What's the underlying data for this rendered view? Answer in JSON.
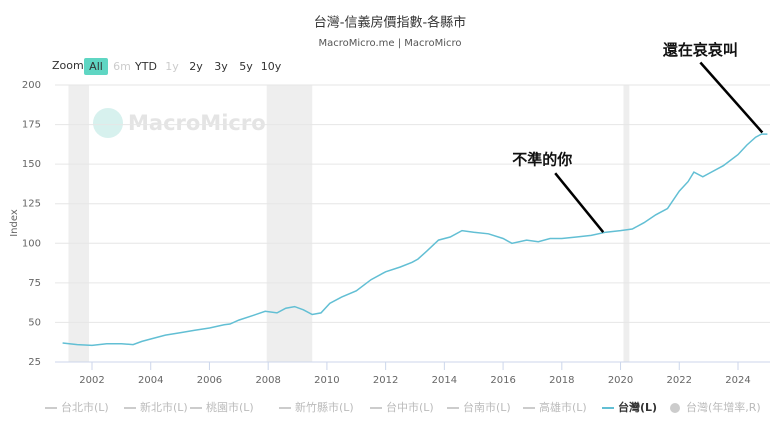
{
  "chart_data": {
    "type": "line",
    "title": "台灣-信義房價指數-各縣市",
    "subtitle": "MacroMicro.me | MacroMicro",
    "watermark": "MacroMicro",
    "y_label": "Index",
    "zoom": {
      "label": "Zoom",
      "buttons": [
        "All",
        "6m",
        "YTD",
        "1y",
        "2y",
        "3y",
        "5y",
        "10y"
      ],
      "active": 0,
      "disabled": [
        1,
        3
      ]
    },
    "x": [
      2001.0,
      2001.5,
      2002.0,
      2002.5,
      2003.0,
      2003.4,
      2003.7,
      2004.0,
      2004.5,
      2005.0,
      2005.5,
      2006.0,
      2006.5,
      2006.7,
      2007.0,
      2007.5,
      2007.9,
      2008.3,
      2008.6,
      2008.9,
      2009.2,
      2009.5,
      2009.8,
      2010.1,
      2010.5,
      2011.0,
      2011.5,
      2012.0,
      2012.5,
      2012.9,
      2013.1,
      2013.4,
      2013.8,
      2014.2,
      2014.6,
      2015.0,
      2015.5,
      2016.0,
      2016.3,
      2016.8,
      2017.2,
      2017.6,
      2018.0,
      2018.5,
      2019.0,
      2019.5,
      2020.0,
      2020.4,
      2020.8,
      2021.2,
      2021.6,
      2022.0,
      2022.3,
      2022.5,
      2022.8,
      2023.0,
      2023.5,
      2024.0,
      2024.3,
      2024.6,
      2024.8,
      2025.0
    ],
    "series": [
      {
        "name": "台灣(L)",
        "color": "#62bfd4",
        "values": [
          37,
          36,
          35.5,
          36.5,
          36.5,
          36,
          38,
          39.5,
          42,
          43.5,
          45,
          46.5,
          48.5,
          49,
          51.5,
          54.5,
          57,
          56,
          59,
          60,
          58,
          55,
          56,
          62,
          66,
          70,
          77,
          82,
          85,
          88,
          90,
          95,
          102,
          104,
          108,
          107,
          106,
          103,
          100,
          102,
          101,
          103,
          103,
          104,
          105,
          107,
          108,
          109,
          113,
          118,
          122,
          133,
          139,
          145,
          142,
          144,
          149,
          156,
          162,
          167,
          169,
          169
        ]
      }
    ],
    "legend_inactive": [
      "台北市(L)",
      "新北市(L)",
      "桃園市(L)",
      "新竹縣市(L)",
      "台中市(L)",
      "台南市(L)",
      "高雄市(L)"
    ],
    "legend_extra": "台灣(年增率,R)",
    "shaded_periods": [
      [
        2001.2,
        2001.9
      ],
      [
        2007.95,
        2009.5
      ],
      [
        2020.1,
        2020.3
      ]
    ],
    "annotations": [
      {
        "text": "還在哀哀叫",
        "x": 2024.83,
        "y": 170
      },
      {
        "text": "不準的你",
        "x": 2019.41,
        "y": 107
      }
    ],
    "xlim": [
      2000.74,
      2025.09
    ],
    "xticks": [
      2002,
      2004,
      2006,
      2008,
      2010,
      2012,
      2014,
      2016,
      2018,
      2020,
      2022,
      2024
    ],
    "ylim": [
      25,
      200
    ],
    "yticks": [
      25,
      50,
      75,
      100,
      125,
      150,
      175,
      200
    ],
    "grid": true
  }
}
